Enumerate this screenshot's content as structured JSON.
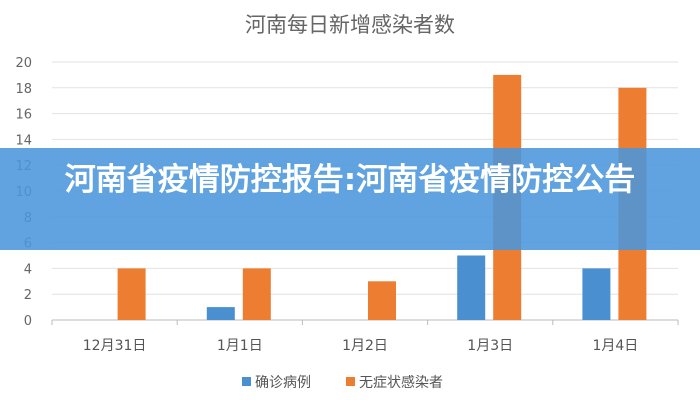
{
  "chart_data": {
    "type": "bar",
    "title": "河南每日新增感染者数",
    "categories": [
      "12月31日",
      "1月1日",
      "1月2日",
      "1月3日",
      "1月4日"
    ],
    "series": [
      {
        "name": "确诊病例",
        "color": "#4a8fd0",
        "values": [
          0,
          1,
          0,
          5,
          4
        ]
      },
      {
        "name": "无症状感染者",
        "color": "#ec7d31",
        "values": [
          4,
          4,
          3,
          19,
          18
        ]
      }
    ],
    "ylim": [
      0,
      20
    ],
    "yticks": [
      0,
      2,
      4,
      6,
      8,
      10,
      12,
      14,
      16,
      18,
      20
    ],
    "grid": true,
    "legend": "bottom"
  },
  "banner": {
    "text": "河南省疫情防控报告:河南省疫情防控公告"
  }
}
